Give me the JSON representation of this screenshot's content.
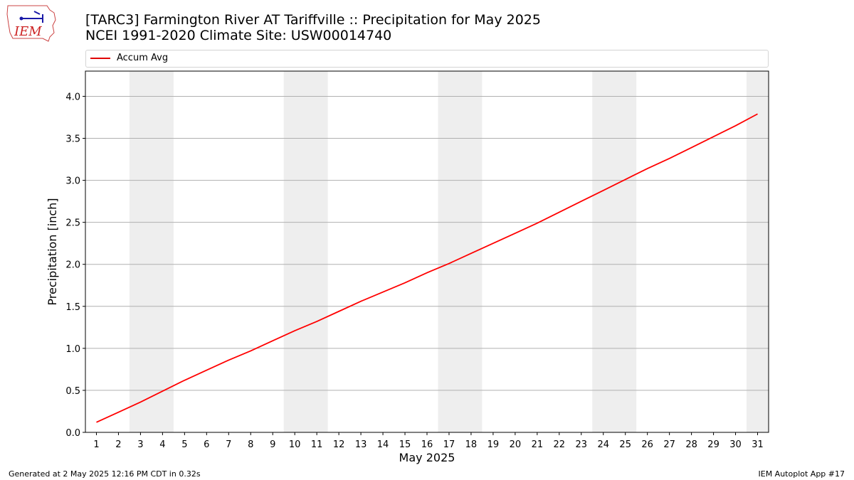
{
  "chart_data": {
    "type": "line",
    "title": "[TARC3] Farmington River  AT Tariffville :: Precipitation for May 2025",
    "subtitle": "NCEI 1991-2020 Climate Site: USW00014740",
    "xlabel": "May 2025",
    "ylabel": "Precipitation [inch]",
    "x": [
      1,
      2,
      3,
      4,
      5,
      6,
      7,
      8,
      9,
      10,
      11,
      12,
      13,
      14,
      15,
      16,
      17,
      18,
      19,
      20,
      21,
      22,
      23,
      24,
      25,
      26,
      27,
      28,
      29,
      30,
      31
    ],
    "xlim": [
      0.5,
      31.5
    ],
    "ylim": [
      0,
      4.3
    ],
    "yticks": [
      0.0,
      0.5,
      1.0,
      1.5,
      2.0,
      2.5,
      3.0,
      3.5,
      4.0
    ],
    "ytick_labels": [
      "0.0",
      "0.5",
      "1.0",
      "1.5",
      "2.0",
      "2.5",
      "3.0",
      "3.5",
      "4.0"
    ],
    "grid": "y",
    "legend_placement": "top",
    "weekend_shading": [
      [
        3,
        4
      ],
      [
        10,
        11
      ],
      [
        17,
        18
      ],
      [
        24,
        25
      ],
      [
        31,
        31
      ]
    ],
    "series": [
      {
        "name": "Accum Avg",
        "color": "#ff0000",
        "values": [
          0.12,
          0.24,
          0.36,
          0.49,
          0.62,
          0.74,
          0.86,
          0.97,
          1.09,
          1.21,
          1.32,
          1.44,
          1.56,
          1.67,
          1.78,
          1.9,
          2.01,
          2.13,
          2.25,
          2.37,
          2.49,
          2.62,
          2.75,
          2.88,
          3.01,
          3.14,
          3.26,
          3.39,
          3.52,
          3.65,
          3.79
        ]
      }
    ]
  },
  "footer": {
    "left": "Generated at 2 May 2025 12:16 PM CDT in 0.32s",
    "right": "IEM Autoplot App #17"
  },
  "logo": {
    "text": "IEM"
  },
  "colors": {
    "shading": "#eeeeee",
    "grid": "#b0b0b0",
    "line": "#ff0000"
  }
}
